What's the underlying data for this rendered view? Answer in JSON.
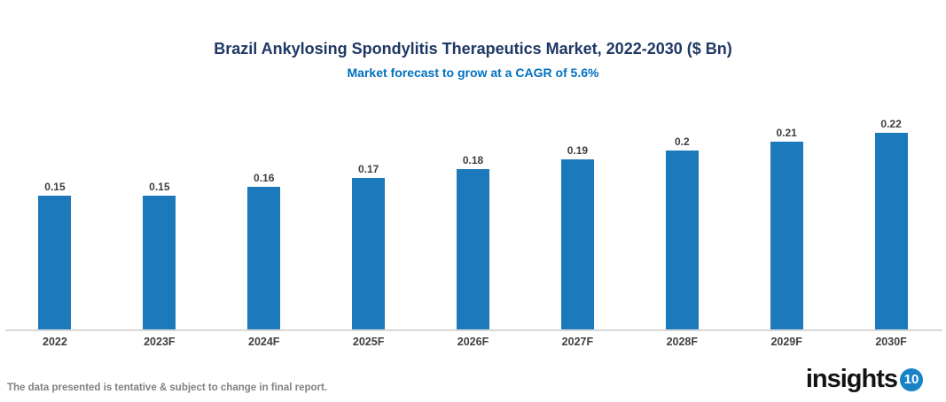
{
  "header": {
    "title": "Brazil Ankylosing Spondylitis Therapeutics Market, 2022-2030 ($ Bn)",
    "subtitle": "Market forecast to grow at a CAGR of 5.6%"
  },
  "chart_data": {
    "type": "bar",
    "title": "Brazil Ankylosing Spondylitis Therapeutics Market, 2022-2030 ($ Bn)",
    "subtitle": "Market forecast to grow at a CAGR of 5.6%",
    "categories": [
      "2022",
      "2023F",
      "2024F",
      "2025F",
      "2026F",
      "2027F",
      "2028F",
      "2029F",
      "2030F"
    ],
    "values": [
      0.15,
      0.15,
      0.16,
      0.17,
      0.18,
      0.19,
      0.2,
      0.21,
      0.22
    ],
    "data_labels": [
      "0.15",
      "0.15",
      "0.16",
      "0.17",
      "0.18",
      "0.19",
      "0.2",
      "0.21",
      "0.22"
    ],
    "xlabel": "",
    "ylabel": "",
    "ylim": [
      0,
      0.22
    ],
    "grid": false,
    "legend": "none",
    "bar_color": "#1B79BC"
  },
  "colors": {
    "title_text": "#1F3864",
    "subtitle_text": "#0070C0",
    "bar_fill": "#1B79BC",
    "axis_line": "#D8D8D8",
    "data_label_text": "#3F3F3F",
    "tick_label_text": "#404040",
    "disclaimer_text": "#808080",
    "logo_circle": "#1783C6"
  },
  "footer": {
    "disclaimer": "The data presented is tentative & subject to change in final report.",
    "logo_text": "insights",
    "logo_number": "10"
  }
}
